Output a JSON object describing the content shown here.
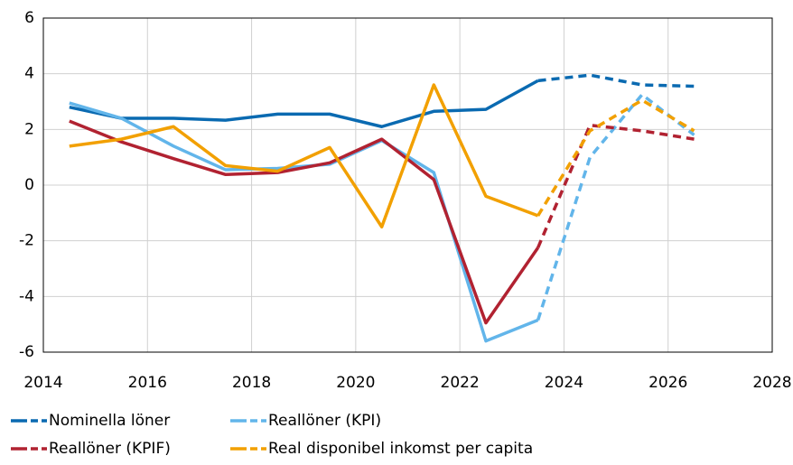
{
  "chart_data": {
    "type": "line",
    "x": [
      2014.5,
      2015.5,
      2016.5,
      2017.5,
      2018.5,
      2019.5,
      2020.5,
      2021.5,
      2022.5,
      2023.5,
      2024.5,
      2025.5,
      2026.5
    ],
    "dashed_from_x": 2023.5,
    "series": [
      {
        "name": "Nominella löner",
        "color": "#0a6ab1",
        "values": [
          2.8,
          2.4,
          2.4,
          2.33,
          2.55,
          2.55,
          2.1,
          2.65,
          2.72,
          3.75,
          3.95,
          3.6,
          3.55
        ]
      },
      {
        "name": "Reallöner (KPI)",
        "color": "#62b5ea",
        "values": [
          2.95,
          2.4,
          1.4,
          0.55,
          0.6,
          0.75,
          1.6,
          0.45,
          -5.6,
          -4.85,
          1.0,
          3.25,
          1.8
        ]
      },
      {
        "name": "Reallöner (KPIF)",
        "color": "#b12231",
        "values": [
          2.3,
          1.55,
          0.95,
          0.38,
          0.45,
          0.8,
          1.65,
          0.2,
          -4.95,
          -2.25,
          2.15,
          1.95,
          1.65
        ]
      },
      {
        "name": "Real disponibel inkomst per capita",
        "color": "#f2a000",
        "values": [
          1.4,
          1.65,
          2.1,
          0.7,
          0.5,
          1.35,
          -1.5,
          3.6,
          -0.4,
          -1.1,
          1.95,
          3.05,
          1.95
        ]
      }
    ],
    "xlim": [
      2014,
      2028
    ],
    "xticks": [
      2014,
      2016,
      2018,
      2020,
      2022,
      2024,
      2026,
      2028
    ],
    "ylim": [
      -6,
      6
    ],
    "yticks": [
      -6,
      -4,
      -2,
      0,
      2,
      4,
      6
    ],
    "grid": true
  }
}
